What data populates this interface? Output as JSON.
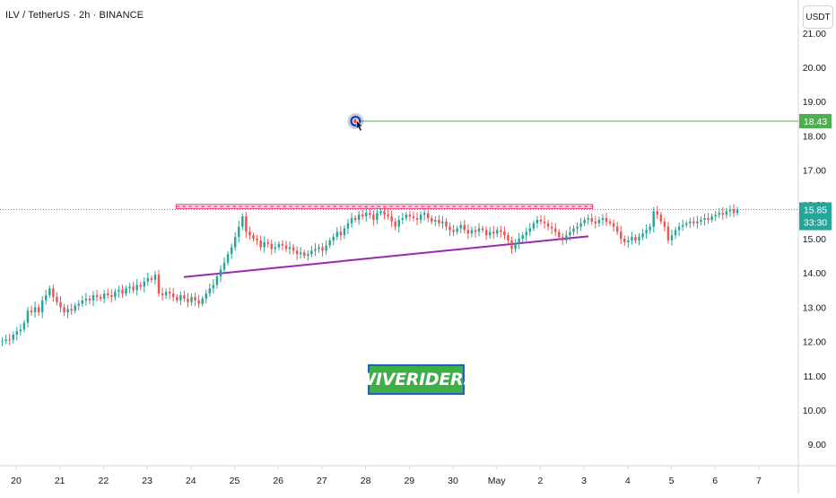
{
  "header": {
    "title": "ILV / TetherUS · 2h · BINANCE",
    "currency": "USDT"
  },
  "watermark": "WIVERIDERS",
  "price_labels": {
    "target": "18.43",
    "current": "15.85",
    "countdown": "33:30"
  },
  "colors": {
    "up": "#26a69a",
    "down": "#ef5350",
    "support": "#9c27b0",
    "target_line": "#4caf50",
    "resistance_fill": "#f8bbd0",
    "resistance_dash": "#e91e63",
    "current_line": "#4caf50",
    "watermark_bg": "#3fae49",
    "watermark_border": "#1e5fc8"
  },
  "chart_data": {
    "type": "candlestick",
    "symbol": "ILV / TetherUS",
    "interval": "2h",
    "exchange": "BINANCE",
    "ylim": [
      8.6,
      21.3
    ],
    "y_ticks": [
      "21.00",
      "20.00",
      "19.00",
      "18.00",
      "17.00",
      "16.00",
      "15.00",
      "14.00",
      "13.00",
      "12.00",
      "11.00",
      "10.00",
      "9.00"
    ],
    "x_ticks": [
      "20",
      "21",
      "22",
      "23",
      "24",
      "25",
      "26",
      "27",
      "28",
      "29",
      "30",
      "May",
      "2",
      "3",
      "4",
      "5",
      "6",
      "7"
    ],
    "x_tick_day_index": [
      0,
      1,
      2,
      3,
      4,
      5,
      6,
      7,
      8,
      9,
      10,
      11,
      12,
      13,
      14,
      15,
      16,
      17
    ],
    "current_price": 15.85,
    "target_price": 18.43,
    "resistance_zone": {
      "from_day": 3.66,
      "to_day": 13.2,
      "low": 15.88,
      "high": 16.0
    },
    "support_trendline": {
      "from_day": 3.84,
      "to_day": 13.1,
      "start": 13.88,
      "end": 15.07
    },
    "target_marker": {
      "day": 7.77,
      "price": 18.43,
      "line_to_day": 18.0
    },
    "series": [
      {
        "name": "",
        "candle_interval_days": 0.0833,
        "start_day": -0.4,
        "close": [
          12.0,
          12.02,
          12.06,
          12.05,
          12.2,
          12.3,
          12.35,
          12.55,
          12.9,
          12.85,
          13.0,
          12.85,
          13.2,
          13.35,
          13.55,
          13.3,
          13.15,
          13.0,
          12.85,
          12.95,
          12.9,
          13.05,
          13.1,
          13.2,
          13.25,
          13.2,
          13.35,
          13.3,
          13.25,
          13.4,
          13.35,
          13.3,
          13.45,
          13.5,
          13.4,
          13.55,
          13.6,
          13.5,
          13.65,
          13.6,
          13.75,
          13.85,
          13.8,
          13.95,
          13.4,
          13.35,
          13.45,
          13.4,
          13.3,
          13.2,
          13.35,
          13.25,
          13.15,
          13.3,
          13.2,
          13.1,
          13.25,
          13.4,
          13.55,
          13.65,
          13.9,
          14.1,
          14.3,
          14.55,
          14.75,
          15.05,
          15.35,
          15.65,
          15.2,
          15.1,
          15.0,
          14.95,
          14.75,
          14.9,
          14.85,
          14.7,
          14.75,
          14.85,
          14.8,
          14.7,
          14.75,
          14.65,
          14.55,
          14.6,
          14.5,
          14.55,
          14.65,
          14.7,
          14.75,
          14.65,
          14.8,
          14.95,
          15.05,
          15.2,
          15.1,
          15.3,
          15.45,
          15.6,
          15.55,
          15.7,
          15.65,
          15.75,
          15.7,
          15.55,
          15.75,
          15.8,
          15.7,
          15.65,
          15.5,
          15.35,
          15.55,
          15.6,
          15.7,
          15.65,
          15.6,
          15.55,
          15.7,
          15.75,
          15.6,
          15.5,
          15.55,
          15.45,
          15.5,
          15.35,
          15.25,
          15.2,
          15.3,
          15.4,
          15.25,
          15.15,
          15.25,
          15.2,
          15.3,
          15.25,
          15.1,
          15.2,
          15.15,
          15.25,
          15.2,
          15.1,
          14.95,
          14.7,
          14.85,
          15.0,
          15.1,
          15.2,
          15.3,
          15.45,
          15.55,
          15.5,
          15.45,
          15.35,
          15.3,
          15.2,
          15.05,
          14.95,
          15.1,
          15.2,
          15.3,
          15.35,
          15.45,
          15.55,
          15.6,
          15.5,
          15.45,
          15.55,
          15.6,
          15.5,
          15.45,
          15.35,
          15.2,
          15.0,
          14.9,
          14.95,
          15.05,
          14.95,
          15.05,
          15.15,
          15.25,
          15.35,
          15.8,
          15.7,
          15.5,
          15.35,
          14.95,
          15.1,
          15.25,
          15.35,
          15.4,
          15.45,
          15.5,
          15.45,
          15.5,
          15.55,
          15.6,
          15.55,
          15.65,
          15.7,
          15.75,
          15.7,
          15.8,
          15.85,
          15.75,
          15.85
        ]
      }
    ]
  }
}
